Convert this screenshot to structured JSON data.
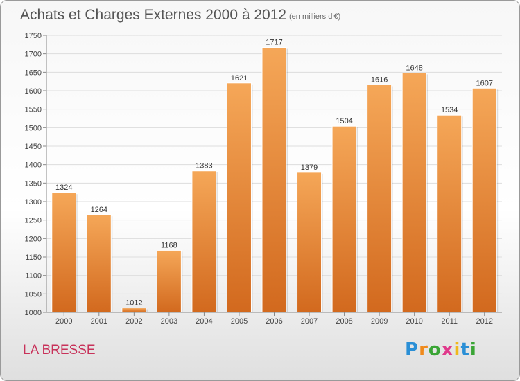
{
  "title": "Achats et Charges Externes 2000 à 2012",
  "subtitle": "(en milliers d'€)",
  "commune": "LA BRESSE",
  "logo": {
    "letters": [
      "P",
      "r",
      "o",
      "x",
      "i",
      "t",
      "i"
    ],
    "colors": [
      "#2a8fd6",
      "#f08a1c",
      "#3aa535",
      "#e03a8c",
      "#f0b81c",
      "#2a8fd6",
      "#3aa535"
    ]
  },
  "colors": {
    "bar_top": "#f5a758",
    "bar_bottom": "#d2691e",
    "grid": "#dddddd"
  },
  "chart_data": {
    "type": "bar",
    "categories": [
      "2000",
      "2001",
      "2002",
      "2003",
      "2004",
      "2005",
      "2006",
      "2007",
      "2008",
      "2009",
      "2010",
      "2011",
      "2012"
    ],
    "values": [
      1324,
      1264,
      1012,
      1168,
      1383,
      1621,
      1717,
      1379,
      1504,
      1616,
      1648,
      1534,
      1607
    ],
    "ylim": [
      1000,
      1750
    ],
    "yticks": [
      1000,
      1050,
      1100,
      1150,
      1200,
      1250,
      1300,
      1350,
      1400,
      1450,
      1500,
      1550,
      1600,
      1650,
      1700,
      1750
    ],
    "grid": true
  }
}
